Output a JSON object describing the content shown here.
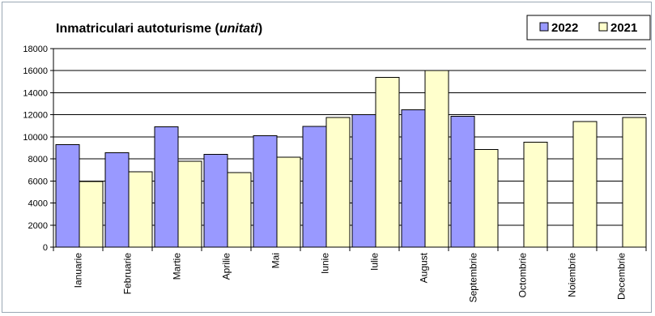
{
  "chart_data": {
    "type": "bar",
    "title_main": "Inmatriculari autoturisme (",
    "title_italic": "unitati",
    "title_end": ")",
    "categories": [
      "Ianuarie",
      "Februarie",
      "Martie",
      "Aprilie",
      "Mai",
      "Iunie",
      "Iulie",
      "August",
      "Septembrie",
      "Octombrie",
      "Noiembrie",
      "Decembrie"
    ],
    "series": [
      {
        "name": "2022",
        "color": "#9999ff",
        "values": [
          9300,
          8550,
          10900,
          8400,
          10100,
          10950,
          12000,
          12450,
          11850,
          null,
          null,
          null
        ]
      },
      {
        "name": "2021",
        "color": "#ffffcc",
        "values": [
          5950,
          6850,
          7800,
          6750,
          8150,
          11750,
          15400,
          16000,
          8850,
          9500,
          11400,
          11750
        ]
      }
    ],
    "ylim": [
      0,
      18000
    ],
    "yticks": [
      "0",
      "2000",
      "4000",
      "6000",
      "8000",
      "10000",
      "12000",
      "14000",
      "16000",
      "18000"
    ],
    "grid": true,
    "legend_position": "top-right"
  }
}
